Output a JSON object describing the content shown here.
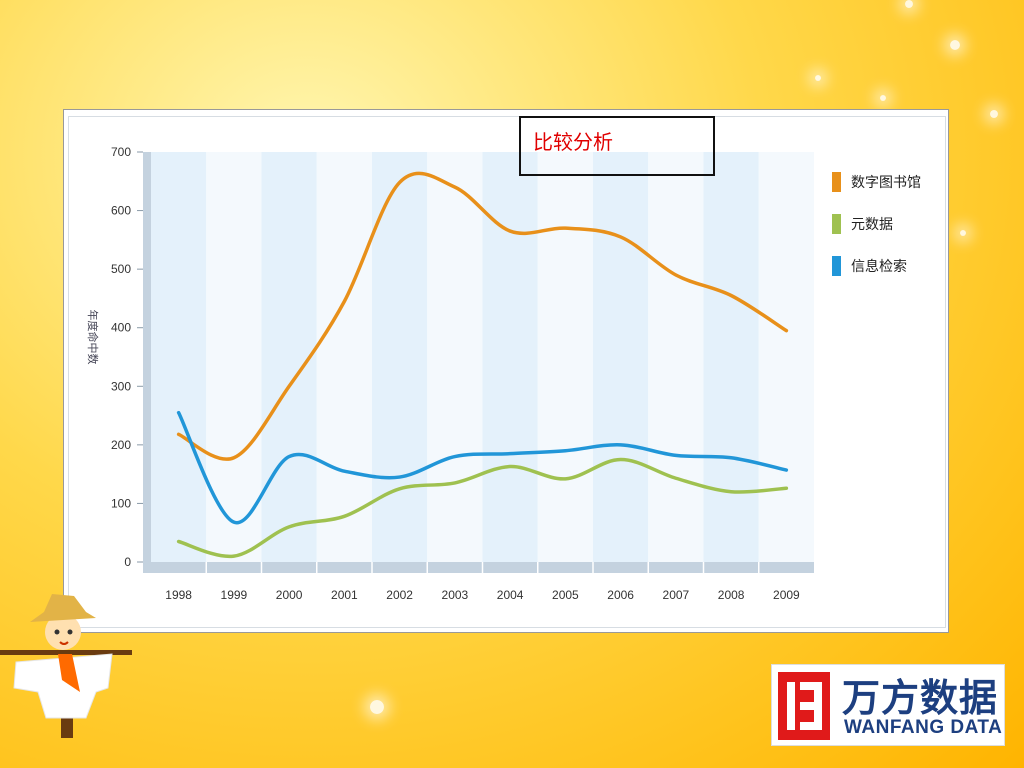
{
  "slide": {
    "title": "比较分析",
    "title_color": "#e00000"
  },
  "chart_data": {
    "type": "line",
    "title": "比较分析",
    "ylabel": "年度命中数",
    "xlabel": "",
    "ylim": [
      0,
      700
    ],
    "yticks": [
      0,
      100,
      200,
      300,
      400,
      500,
      600,
      700
    ],
    "categories": [
      "1998",
      "1999",
      "2000",
      "2001",
      "2002",
      "2003",
      "2004",
      "2005",
      "2006",
      "2007",
      "2008",
      "2009"
    ],
    "legend_position": "right",
    "series": [
      {
        "name": "数字图书馆",
        "color": "#e8901a",
        "values": [
          218,
          178,
          300,
          445,
          648,
          640,
          565,
          570,
          555,
          490,
          455,
          395
        ]
      },
      {
        "name": "元数据",
        "color": "#9fc150",
        "values": [
          35,
          10,
          60,
          78,
          125,
          135,
          163,
          142,
          175,
          143,
          120,
          126
        ]
      },
      {
        "name": "信息检索",
        "color": "#2196d8",
        "values": [
          255,
          68,
          180,
          155,
          145,
          180,
          185,
          190,
          200,
          182,
          178,
          157
        ]
      }
    ]
  },
  "logo": {
    "cn": "万方数据",
    "en": "WANFANG DATA",
    "brand_color": "#1d3f80",
    "mark_color": "#e01a1a"
  }
}
